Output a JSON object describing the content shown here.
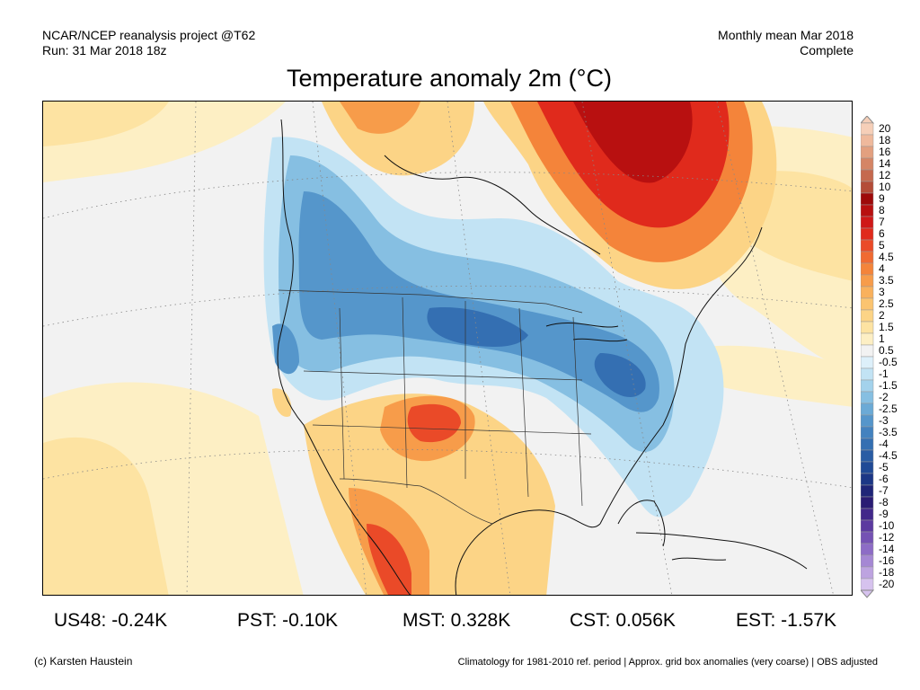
{
  "header": {
    "left_line1": "NCAR/NCEP reanalysis project @T62",
    "left_line2": "Run: 31 Mar 2018 18z",
    "right_line1": "Monthly mean Mar 2018",
    "right_line2": "Complete"
  },
  "title": "Temperature anomaly 2m (°C)",
  "colorbar": {
    "levels": [
      {
        "label": "20",
        "color": "#f6cfb8"
      },
      {
        "label": "18",
        "color": "#efb99c"
      },
      {
        "label": "16",
        "color": "#e3a07f"
      },
      {
        "label": "14",
        "color": "#d58565"
      },
      {
        "label": "12",
        "color": "#c5694e"
      },
      {
        "label": "10",
        "color": "#b44c38"
      },
      {
        "label": "9",
        "color": "#9e0a0a"
      },
      {
        "label": "8",
        "color": "#b81010"
      },
      {
        "label": "7",
        "color": "#cf1818"
      },
      {
        "label": "6",
        "color": "#e02a1c"
      },
      {
        "label": "5",
        "color": "#ea4a28"
      },
      {
        "label": "4.5",
        "color": "#f06a32"
      },
      {
        "label": "4",
        "color": "#f4843a"
      },
      {
        "label": "3.5",
        "color": "#f79c4a"
      },
      {
        "label": "3",
        "color": "#f9b15c"
      },
      {
        "label": "2.5",
        "color": "#fbc470"
      },
      {
        "label": "2",
        "color": "#fcd486"
      },
      {
        "label": "1.5",
        "color": "#fde3a2"
      },
      {
        "label": "1",
        "color": "#fdefc4"
      },
      {
        "label": "0.5",
        "color": "#f2f2f2"
      },
      {
        "label": "-0.5",
        "color": "#ddf0fa"
      },
      {
        "label": "-1",
        "color": "#c2e3f4"
      },
      {
        "label": "-1.5",
        "color": "#a3d2ec"
      },
      {
        "label": "-2",
        "color": "#86bfe2"
      },
      {
        "label": "-2.5",
        "color": "#6baad6"
      },
      {
        "label": "-3",
        "color": "#5596cb"
      },
      {
        "label": "-3.5",
        "color": "#4382bf"
      },
      {
        "label": "-4",
        "color": "#346fb2"
      },
      {
        "label": "-4.5",
        "color": "#295ca4"
      },
      {
        "label": "-5",
        "color": "#204a96"
      },
      {
        "label": "-6",
        "color": "#1c3786"
      },
      {
        "label": "-7",
        "color": "#1f2578"
      },
      {
        "label": "-8",
        "color": "#2a1c74"
      },
      {
        "label": "-9",
        "color": "#42288a"
      },
      {
        "label": "-10",
        "color": "#5c3aa0"
      },
      {
        "label": "-12",
        "color": "#7552b4"
      },
      {
        "label": "-14",
        "color": "#8d6cc6"
      },
      {
        "label": "-16",
        "color": "#a587d4"
      },
      {
        "label": "-18",
        "color": "#bda3e0"
      },
      {
        "label": "-20",
        "color": "#d6c2ee"
      }
    ]
  },
  "stats": [
    {
      "label": "US48: -0.24K"
    },
    {
      "label": "PST: -0.10K"
    },
    {
      "label": "MST: 0.328K"
    },
    {
      "label": "CST: 0.056K"
    },
    {
      "label": "EST: -1.57K"
    }
  ],
  "footer": {
    "copyright": "(c) Karsten Haustein",
    "note": "Climatology for 1981-2010 ref. period | Approx. grid box anomalies (very coarse) | OBS adjusted"
  }
}
